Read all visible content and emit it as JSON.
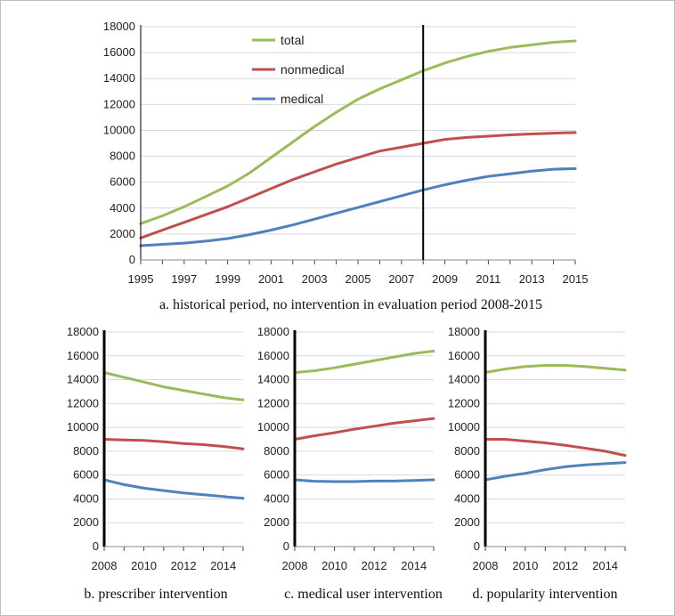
{
  "colors": {
    "total": "#9bbb59",
    "nonmedical": "#c0504d",
    "medical": "#4f81bd",
    "divider": "#000000"
  },
  "chart_data": [
    {
      "id": "a",
      "type": "line",
      "caption": "a. historical period, no intervention in evaluation period 2008-2015",
      "x": [
        1995,
        1996,
        1997,
        1998,
        1999,
        2000,
        2001,
        2002,
        2003,
        2004,
        2005,
        2006,
        2007,
        2008,
        2009,
        2010,
        2011,
        2012,
        2013,
        2014,
        2015
      ],
      "ylim": [
        0,
        18000
      ],
      "yticks": [
        0,
        2000,
        4000,
        6000,
        8000,
        10000,
        12000,
        14000,
        16000,
        18000
      ],
      "xticks": [
        1995,
        1997,
        1999,
        2001,
        2003,
        2005,
        2007,
        2009,
        2011,
        2013,
        2015
      ],
      "vline_x": 2008,
      "legend": "top-left",
      "grid": true,
      "series": [
        {
          "name": "total",
          "values": [
            2800,
            3400,
            4100,
            4900,
            5700,
            6700,
            7900,
            9100,
            10300,
            11400,
            12400,
            13200,
            13900,
            14600,
            15200,
            15700,
            16100,
            16400,
            16600,
            16800,
            16900
          ]
        },
        {
          "name": "nonmedical",
          "values": [
            1700,
            2300,
            2900,
            3500,
            4100,
            4800,
            5500,
            6200,
            6800,
            7400,
            7900,
            8400,
            8700,
            9000,
            9300,
            9450,
            9550,
            9650,
            9720,
            9780,
            9830
          ]
        },
        {
          "name": "medical",
          "values": [
            1100,
            1200,
            1300,
            1450,
            1650,
            1950,
            2300,
            2700,
            3150,
            3600,
            4050,
            4500,
            4950,
            5400,
            5800,
            6150,
            6450,
            6650,
            6850,
            7000,
            7050
          ]
        }
      ]
    },
    {
      "id": "b",
      "type": "line",
      "caption": "b. prescriber intervention",
      "x": [
        2008,
        2009,
        2010,
        2011,
        2012,
        2013,
        2014,
        2015
      ],
      "ylim": [
        0,
        18000
      ],
      "yticks": [
        0,
        2000,
        4000,
        6000,
        8000,
        10000,
        12000,
        14000,
        16000,
        18000
      ],
      "xticks": [
        2008,
        2010,
        2012,
        2014
      ],
      "grid": true,
      "series": [
        {
          "name": "total",
          "values": [
            14600,
            14200,
            13800,
            13400,
            13100,
            12800,
            12500,
            12300
          ]
        },
        {
          "name": "nonmedical",
          "values": [
            9000,
            8950,
            8900,
            8800,
            8650,
            8550,
            8400,
            8200
          ]
        },
        {
          "name": "medical",
          "values": [
            5600,
            5200,
            4900,
            4700,
            4500,
            4350,
            4200,
            4050
          ]
        }
      ]
    },
    {
      "id": "c",
      "type": "line",
      "caption": "c. medical user intervention",
      "x": [
        2008,
        2009,
        2010,
        2011,
        2012,
        2013,
        2014,
        2015
      ],
      "ylim": [
        0,
        18000
      ],
      "yticks": [
        0,
        2000,
        4000,
        6000,
        8000,
        10000,
        12000,
        14000,
        16000,
        18000
      ],
      "xticks": [
        2008,
        2010,
        2012,
        2014
      ],
      "grid": true,
      "series": [
        {
          "name": "total",
          "values": [
            14600,
            14750,
            15000,
            15300,
            15600,
            15900,
            16200,
            16400
          ]
        },
        {
          "name": "nonmedical",
          "values": [
            9000,
            9300,
            9550,
            9850,
            10100,
            10350,
            10550,
            10750
          ]
        },
        {
          "name": "medical",
          "values": [
            5600,
            5480,
            5450,
            5450,
            5500,
            5500,
            5550,
            5600
          ]
        }
      ]
    },
    {
      "id": "d",
      "type": "line",
      "caption": "d. popularity intervention",
      "x": [
        2008,
        2009,
        2010,
        2011,
        2012,
        2013,
        2014,
        2015
      ],
      "ylim": [
        0,
        18000
      ],
      "yticks": [
        0,
        2000,
        4000,
        6000,
        8000,
        10000,
        12000,
        14000,
        16000,
        18000
      ],
      "xticks": [
        2008,
        2010,
        2012,
        2014
      ],
      "grid": true,
      "series": [
        {
          "name": "total",
          "values": [
            14600,
            14900,
            15100,
            15200,
            15200,
            15100,
            14950,
            14800
          ]
        },
        {
          "name": "nonmedical",
          "values": [
            9000,
            9000,
            8850,
            8700,
            8500,
            8250,
            8000,
            7650
          ]
        },
        {
          "name": "medical",
          "values": [
            5600,
            5900,
            6150,
            6450,
            6700,
            6850,
            6950,
            7050
          ]
        }
      ]
    }
  ]
}
